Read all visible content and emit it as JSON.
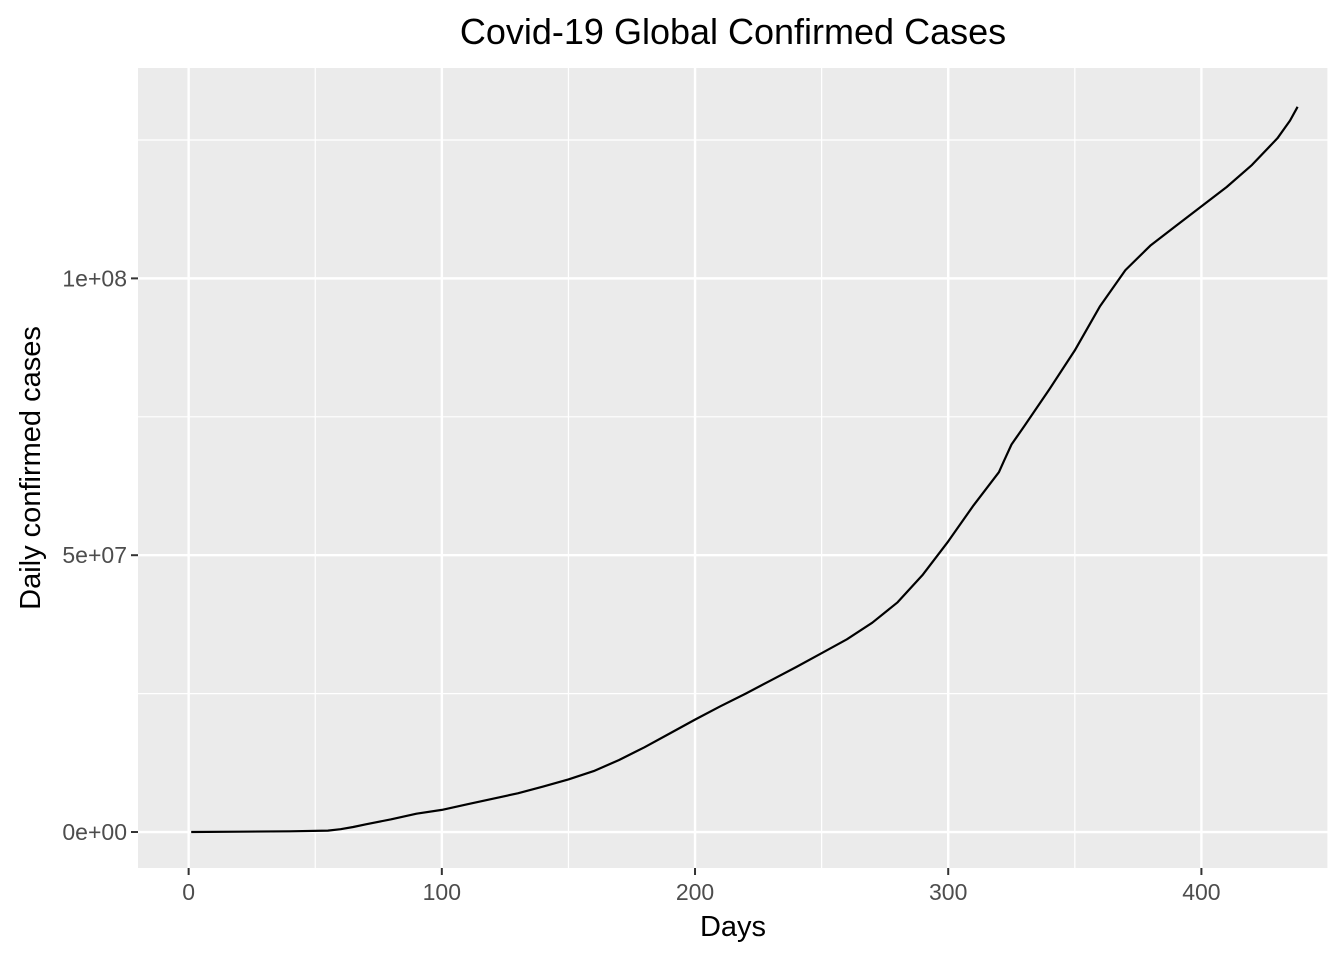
{
  "chart_data": {
    "type": "line",
    "title": "Covid-19 Global Confirmed Cases",
    "xlabel": "Days",
    "ylabel": "Daily confirmed cases",
    "xlim": [
      -20,
      450
    ],
    "ylim": [
      -6500000,
      138000000
    ],
    "x_ticks": [
      {
        "value": 0,
        "label": "0"
      },
      {
        "value": 100,
        "label": "100"
      },
      {
        "value": 200,
        "label": "200"
      },
      {
        "value": 300,
        "label": "300"
      },
      {
        "value": 400,
        "label": "400"
      }
    ],
    "y_ticks": [
      {
        "value": 0,
        "label": "0e+00"
      },
      {
        "value": 50000000,
        "label": "5e+07"
      },
      {
        "value": 100000000,
        "label": "1e+08"
      }
    ],
    "grid": true,
    "panel_color": "#ebebeb",
    "grid_color": "#ffffff",
    "line_color": "#000000",
    "series": [
      {
        "x": [
          1,
          20,
          40,
          55,
          60,
          65,
          70,
          80,
          90,
          100,
          110,
          120,
          130,
          140,
          150,
          160,
          170,
          180,
          190,
          200,
          210,
          220,
          230,
          240,
          250,
          260,
          270,
          280,
          290,
          300,
          310,
          320,
          322,
          325,
          330,
          340,
          350,
          360,
          370,
          380,
          390,
          400,
          410,
          420,
          430,
          435,
          438
        ],
        "y": [
          0,
          50000,
          120000,
          250000,
          500000,
          900000,
          1400000,
          2300000,
          3300000,
          4000000,
          5000000,
          6000000,
          7000000,
          8200000,
          9500000,
          11000000,
          13000000,
          15300000,
          17800000,
          20300000,
          22700000,
          25000000,
          27400000,
          29800000,
          32300000,
          34800000,
          37800000,
          41500000,
          46500000,
          52500000,
          59000000,
          65000000,
          67000000,
          70000000,
          73300000,
          80000000,
          87000000,
          95000000,
          101500000,
          106000000,
          109500000,
          113000000,
          116500000,
          120500000,
          125300000,
          128500000,
          131000000
        ]
      }
    ]
  }
}
